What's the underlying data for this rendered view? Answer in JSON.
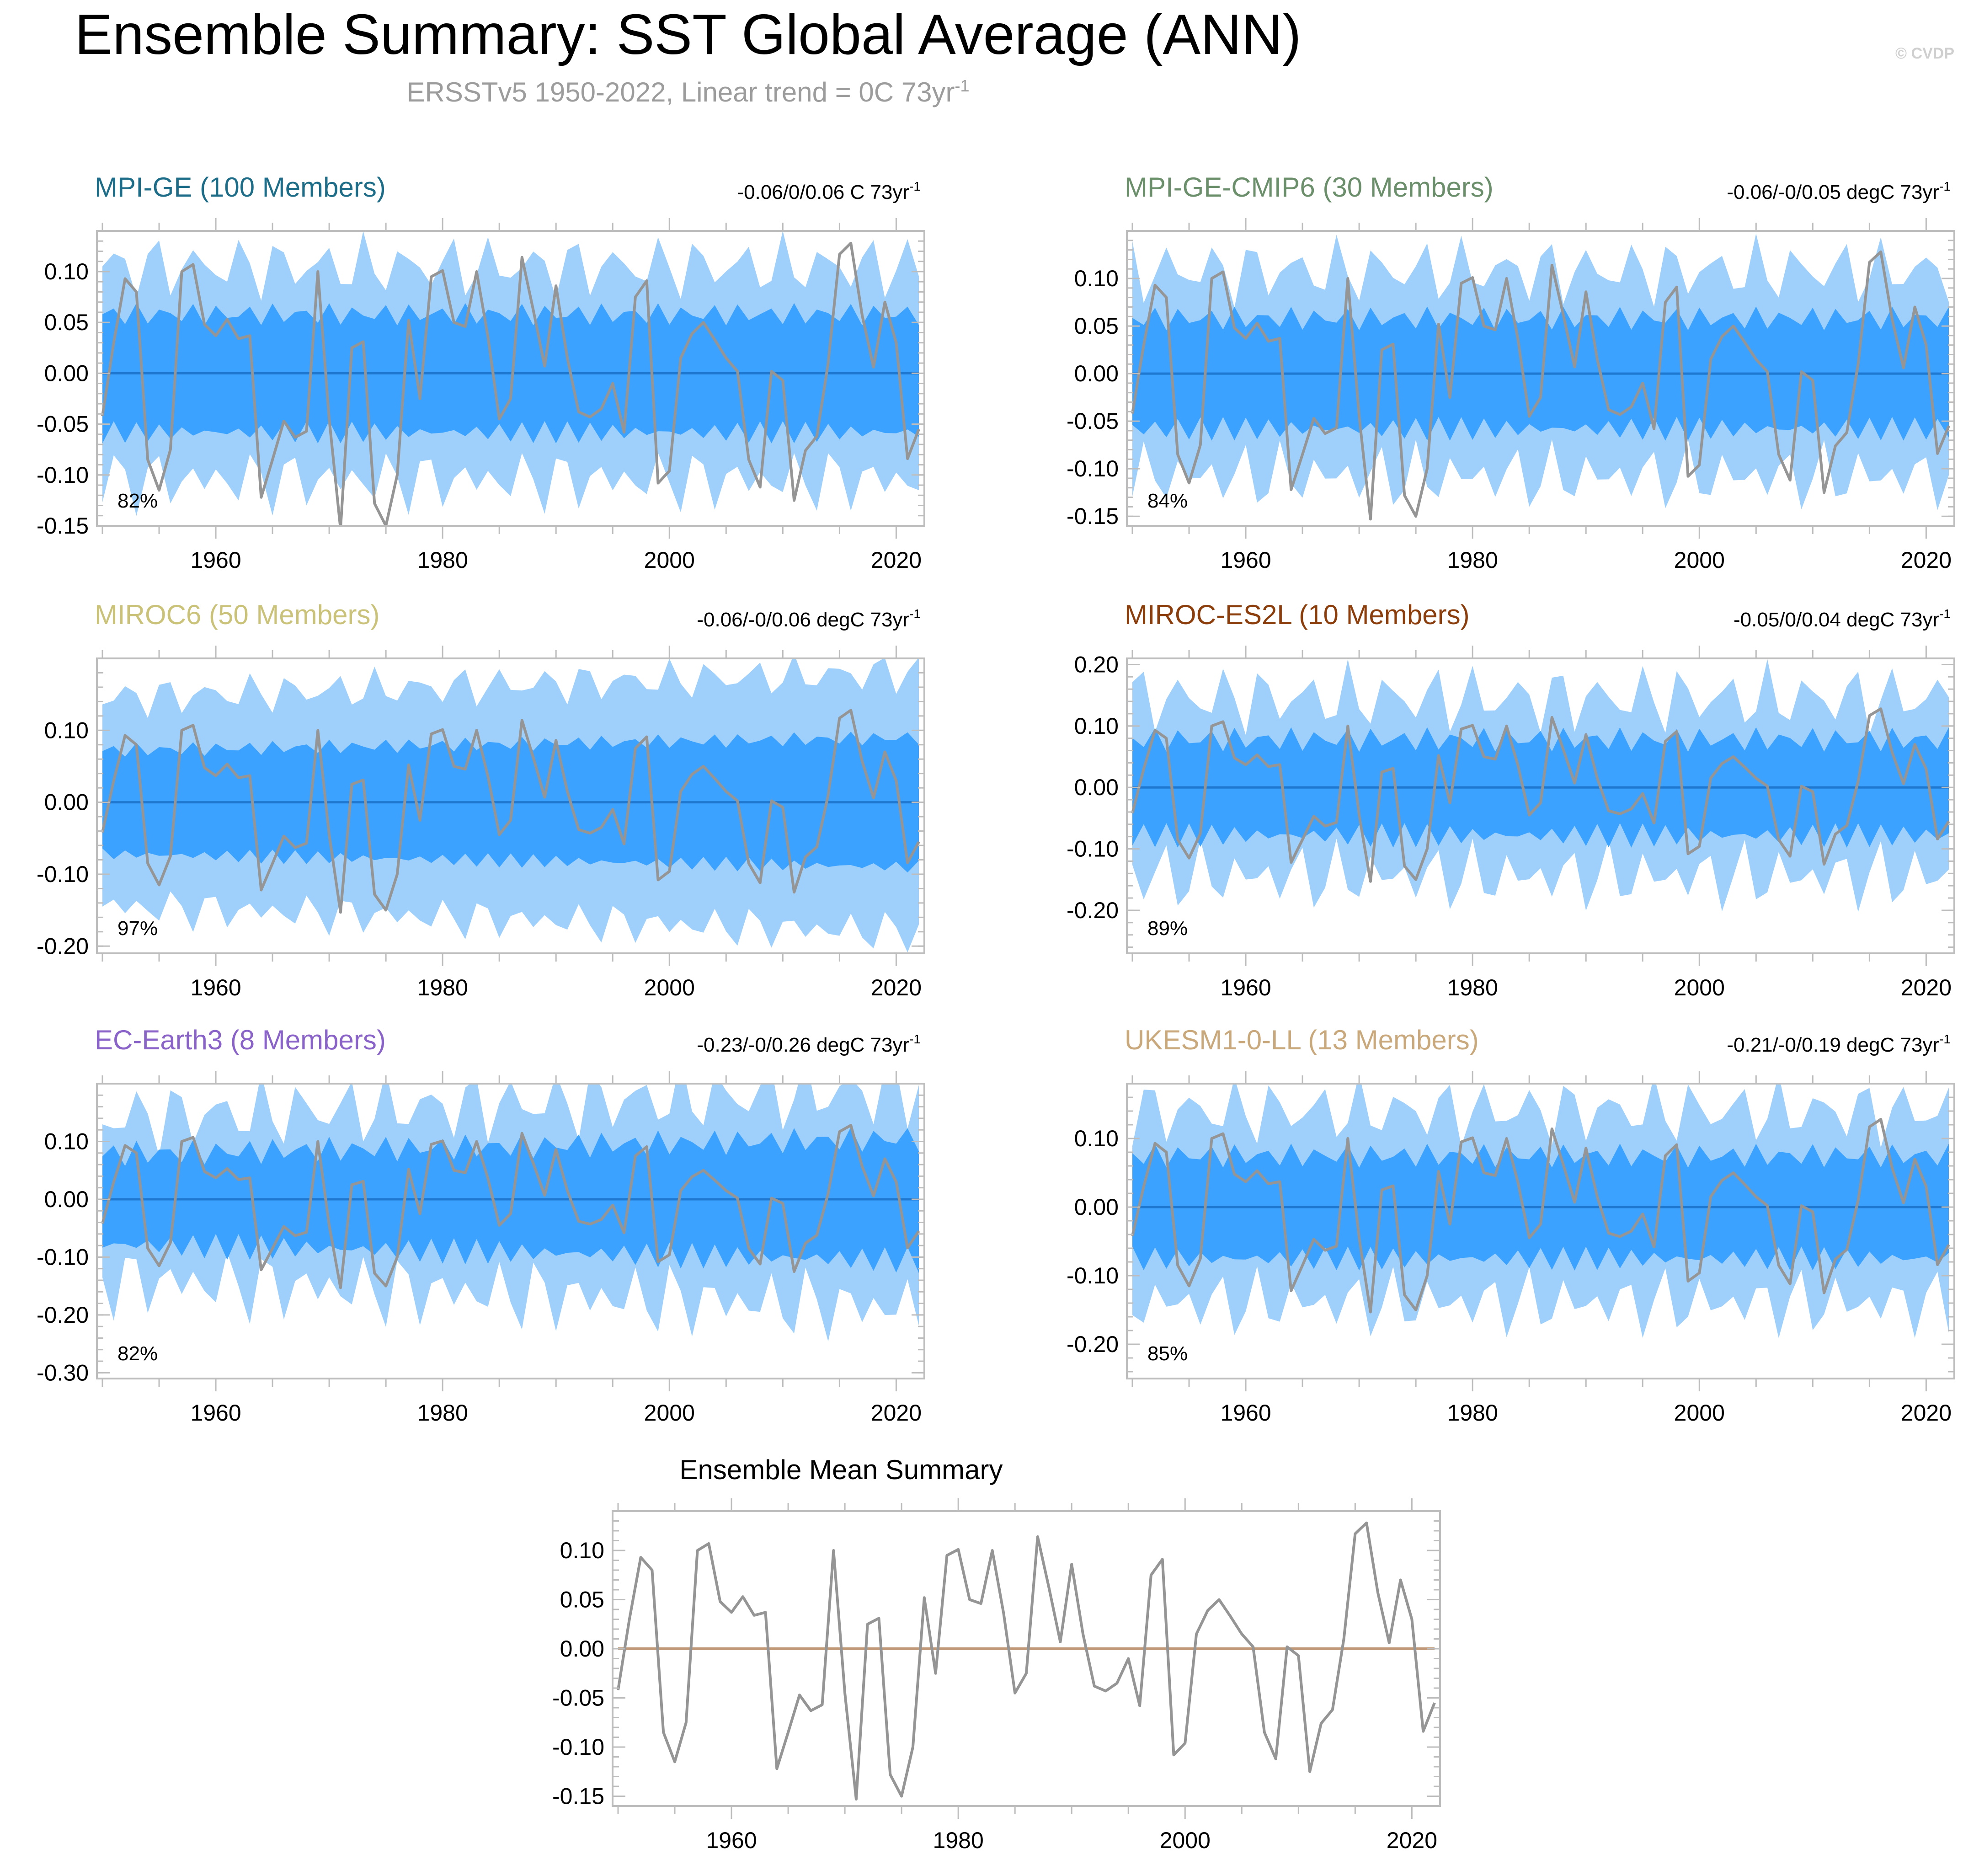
{
  "title": "Ensemble Summary: SST Global Average (ANN)",
  "subtitle": "ERSSTv5 1950-2022, Linear trend = 0C 73yr",
  "subtitle_sup": "-1",
  "watermark": "© CVDP",
  "colors": {
    "band_outer": "#9fd0fb",
    "band_inner": "#3ba2ff",
    "ensemble_mean": "#1f78d0",
    "observations": "#959595",
    "mean_summary_line": "#c09a78",
    "frame": "#bdbdbd"
  },
  "chart_data": [
    {
      "type": "area",
      "title": "MPI-GE (100 Members)",
      "title_color": "#1d6d88",
      "trend": "-0.06/0/0.06 C 73yr",
      "trend_sup": "-1",
      "percent": "82%",
      "ylim": [
        -0.15,
        0.14
      ],
      "yticks": [
        -0.15,
        -0.1,
        -0.05,
        0.0,
        0.05,
        0.1
      ],
      "ytick_labels": [
        "-0.15",
        "-0.10",
        "-0.05",
        "0.00",
        "0.05",
        "0.10"
      ],
      "xlim": [
        1950,
        2022
      ],
      "xticks": [
        1960,
        1980,
        2000,
        2020
      ],
      "xtick_labels": [
        "1960",
        "1980",
        "2000",
        "2020"
      ],
      "outer_amp": 0.105,
      "inner_amp": 0.058,
      "grow": 0.0,
      "noise": 0.022
    },
    {
      "type": "area",
      "title": "MPI-GE-CMIP6 (30 Members)",
      "title_color": "#6a8f6a",
      "trend": "-0.06/-0/0.05 degC 73yr",
      "trend_sup": "-1",
      "percent": "84%",
      "ylim": [
        -0.16,
        0.15
      ],
      "yticks": [
        -0.15,
        -0.1,
        -0.05,
        0.0,
        0.05,
        0.1
      ],
      "ytick_labels": [
        "-0.15",
        "-0.10",
        "-0.05",
        "0.00",
        "0.05",
        "0.10"
      ],
      "xlim": [
        1950,
        2022
      ],
      "xticks": [
        1960,
        1980,
        2000,
        2020
      ],
      "xtick_labels": [
        "1960",
        "1980",
        "2000",
        "2020"
      ],
      "outer_amp": 0.108,
      "inner_amp": 0.058,
      "grow": 0.0,
      "noise": 0.025
    },
    {
      "type": "area",
      "title": "MIROC6 (50 Members)",
      "title_color": "#cbc27a",
      "trend": "-0.06/-0/0.06 degC 73yr",
      "trend_sup": "-1",
      "percent": "97%",
      "ylim": [
        -0.21,
        0.2
      ],
      "yticks": [
        -0.2,
        -0.1,
        0.0,
        0.1
      ],
      "ytick_labels": [
        "-0.20",
        "-0.10",
        "0.00",
        "0.10"
      ],
      "xlim": [
        1950,
        2022
      ],
      "xticks": [
        1960,
        1980,
        2000,
        2020
      ],
      "xtick_labels": [
        "1960",
        "1980",
        "2000",
        "2020"
      ],
      "outer_amp": 0.145,
      "inner_amp": 0.072,
      "grow": 0.25,
      "noise": 0.02
    },
    {
      "type": "area",
      "title": "MIROC-ES2L (10 Members)",
      "title_color": "#8b3d0c",
      "trend": "-0.05/0/0.04 degC 73yr",
      "trend_sup": "-1",
      "percent": "89%",
      "ylim": [
        -0.27,
        0.21
      ],
      "yticks": [
        -0.2,
        -0.1,
        0.0,
        0.1,
        0.2
      ],
      "ytick_labels": [
        "-0.20",
        "-0.10",
        "0.00",
        "0.10",
        "0.20"
      ],
      "xlim": [
        1950,
        2022
      ],
      "xticks": [
        1960,
        1980,
        2000,
        2020
      ],
      "xtick_labels": [
        "1960",
        "1980",
        "2000",
        "2020"
      ],
      "outer_amp": 0.145,
      "inner_amp": 0.078,
      "grow": 0.0,
      "noise": 0.04
    },
    {
      "type": "area",
      "title": "EC-Earth3 (8 Members)",
      "title_color": "#8a63c9",
      "trend": "-0.23/-0/0.26 degC 73yr",
      "trend_sup": "-1",
      "percent": "82%",
      "ylim": [
        -0.31,
        0.2
      ],
      "yticks": [
        -0.3,
        -0.2,
        -0.1,
        0.0,
        0.1
      ],
      "ytick_labels": [
        "-0.30",
        "-0.20",
        "-0.10",
        "0.00",
        "0.10"
      ],
      "xlim": [
        1950,
        2022
      ],
      "xticks": [
        1960,
        1980,
        2000,
        2020
      ],
      "xtick_labels": [
        "1960",
        "1980",
        "2000",
        "2020"
      ],
      "outer_amp": 0.14,
      "inner_amp": 0.078,
      "grow": 0.35,
      "noise": 0.045
    },
    {
      "type": "area",
      "title": "UKESM1-0-LL (13 Members)",
      "title_color": "#c9a97c",
      "trend": "-0.21/-0/0.19 degC 73yr",
      "trend_sup": "-1",
      "percent": "85%",
      "ylim": [
        -0.25,
        0.18
      ],
      "yticks": [
        -0.2,
        -0.1,
        0.0,
        0.1
      ],
      "ytick_labels": [
        "-0.20",
        "-0.10",
        "0.00",
        "0.10"
      ],
      "xlim": [
        1950,
        2022
      ],
      "xticks": [
        1960,
        1980,
        2000,
        2020
      ],
      "xtick_labels": [
        "1960",
        "1980",
        "2000",
        "2020"
      ],
      "outer_amp": 0.14,
      "inner_amp": 0.075,
      "grow": 0.0,
      "noise": 0.035
    },
    {
      "type": "line",
      "title": "Ensemble Mean Summary",
      "ylim": [
        -0.16,
        0.14
      ],
      "yticks": [
        -0.15,
        -0.1,
        -0.05,
        0.0,
        0.05,
        0.1
      ],
      "ytick_labels": [
        "-0.15",
        "-0.10",
        "-0.05",
        "0.00",
        "0.05",
        "0.10"
      ],
      "xlim": [
        1950,
        2022
      ],
      "xticks": [
        1960,
        1980,
        2000,
        2020
      ],
      "xtick_labels": [
        "1960",
        "1980",
        "2000",
        "2020"
      ]
    }
  ],
  "observed_series": {
    "name": "ERSSTv5",
    "years_start": 1950,
    "values": [
      -0.042,
      0.03,
      0.093,
      0.08,
      -0.085,
      -0.115,
      -0.075,
      0.1,
      0.107,
      0.048,
      0.037,
      0.053,
      0.034,
      0.037,
      -0.122,
      -0.085,
      -0.047,
      -0.063,
      -0.057,
      0.1,
      -0.045,
      -0.153,
      0.025,
      0.031,
      -0.128,
      -0.15,
      -0.1,
      0.052,
      -0.025,
      0.095,
      0.101,
      0.05,
      0.046,
      0.1,
      0.036,
      -0.045,
      -0.025,
      0.114,
      0.062,
      0.007,
      0.086,
      0.015,
      -0.038,
      -0.043,
      -0.035,
      -0.01,
      -0.058,
      0.075,
      0.091,
      -0.108,
      -0.096,
      0.015,
      0.039,
      0.05,
      0.033,
      0.015,
      0.002,
      -0.085,
      -0.112,
      0.002,
      -0.007,
      -0.125,
      -0.076,
      -0.062,
      0.01,
      0.117,
      0.128,
      0.057,
      0.006,
      0.07,
      0.03,
      -0.084,
      -0.055
    ]
  }
}
